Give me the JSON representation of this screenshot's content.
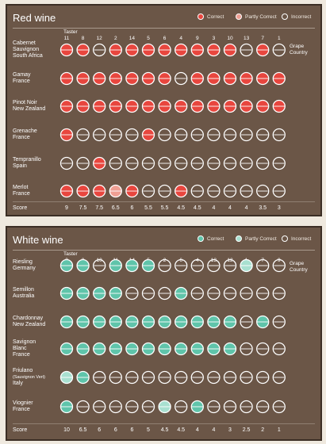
{
  "colors": {
    "red_correct": "#e8463e",
    "red_partly": "#ef9f93",
    "white_correct": "#5fc4aa",
    "white_partly": "#a8e0d0",
    "panel_bg": "#6b5647",
    "ring": "#ffffff"
  },
  "legend": {
    "correct": "Correct",
    "partly": "Partly Correct",
    "incorrect": "Incorrect"
  },
  "header": {
    "taster_label": "Taster",
    "grape_label": "Grape",
    "country_label": "Country",
    "score_label": "Score"
  },
  "chart_data": [
    {
      "type": "table",
      "title": "Red wine",
      "tasters": [
        "11",
        "8",
        "12",
        "2",
        "14",
        "5",
        "6",
        "4",
        "9",
        "3",
        "10",
        "13",
        "7",
        "1"
      ],
      "wines": [
        {
          "lines": [
            "Cabernet",
            "Sauvignon",
            "South Africa"
          ],
          "results": [
            "C",
            "C",
            "I",
            "C",
            "C",
            "C",
            "C",
            "C",
            "C",
            "C",
            "C",
            "I",
            "C",
            "I"
          ]
        },
        {
          "lines": [
            "Gamay",
            "France"
          ],
          "results": [
            "C",
            "C",
            "C",
            "C",
            "C",
            "C",
            "C",
            "I",
            "C",
            "C",
            "C",
            "C",
            "C",
            "C"
          ]
        },
        {
          "lines": [
            "Pinot Noir",
            "New Zealand"
          ],
          "results": [
            "C",
            "C",
            "C",
            "C",
            "C",
            "C",
            "C",
            "C",
            "C",
            "C",
            "C",
            "C",
            "C",
            "C"
          ]
        },
        {
          "lines": [
            "Grenache",
            "France"
          ],
          "results": [
            "C",
            "I",
            "I",
            "I",
            "I",
            "C",
            "I",
            "I",
            "I",
            "I",
            "I",
            "I",
            "I",
            "I"
          ]
        },
        {
          "lines": [
            "Tempranillo",
            "Spain"
          ],
          "results": [
            "I",
            "I",
            "C",
            "I",
            "I",
            "I",
            "I",
            "I",
            "I",
            "I",
            "I",
            "I",
            "I",
            "I"
          ]
        },
        {
          "lines": [
            "Merlot",
            "France"
          ],
          "results": [
            "C",
            "C",
            "C",
            "P",
            "C",
            "I",
            "I",
            "C",
            "I",
            "I",
            "I",
            "I",
            "I",
            "I"
          ]
        }
      ],
      "scores": [
        "9",
        "7.5",
        "7.5",
        "6.5",
        "6",
        "5.5",
        "5.5",
        "4.5",
        "4.5",
        "4",
        "4",
        "4",
        "3.5",
        "3"
      ]
    },
    {
      "type": "table",
      "title": "White wine",
      "tasters": [
        "3",
        "8",
        "10",
        "11",
        "14",
        "5",
        "2",
        "6",
        "4",
        "13",
        "12",
        "1",
        "7",
        "9"
      ],
      "wines": [
        {
          "lines": [
            "Riesling",
            "Germany"
          ],
          "results": [
            "C",
            "C",
            "I",
            "C",
            "C",
            "C",
            "I",
            "I",
            "I",
            "I",
            "I",
            "P",
            "I",
            "I"
          ]
        },
        {
          "lines": [
            "Semillon",
            "Australia"
          ],
          "results": [
            "C",
            "C",
            "C",
            "C",
            "I",
            "I",
            "I",
            "C",
            "I",
            "I",
            "I",
            "I",
            "I",
            "I"
          ]
        },
        {
          "lines": [
            "Chardonnay",
            "New Zealand"
          ],
          "results": [
            "C",
            "C",
            "C",
            "C",
            "C",
            "C",
            "C",
            "C",
            "C",
            "C",
            "C",
            "I",
            "C",
            "I"
          ]
        },
        {
          "lines": [
            "Savignon",
            "Blanc",
            "France"
          ],
          "results": [
            "C",
            "C",
            "C",
            "C",
            "C",
            "C",
            "C",
            "C",
            "C",
            "C",
            "C",
            "I",
            "I",
            "I"
          ]
        },
        {
          "lines": [
            "Friulano",
            "(Sauvignon Vert)",
            "Italy"
          ],
          "results": [
            "P",
            "C",
            "I",
            "I",
            "I",
            "I",
            "I",
            "I",
            "I",
            "I",
            "I",
            "I",
            "I",
            "I"
          ]
        },
        {
          "lines": [
            "Viognier",
            "France"
          ],
          "results": [
            "C",
            "I",
            "I",
            "I",
            "I",
            "I",
            "P",
            "I",
            "C",
            "I",
            "I",
            "I",
            "I",
            "I"
          ]
        }
      ],
      "scores": [
        "10",
        "6.5",
        "6",
        "6",
        "6",
        "5",
        "4.5",
        "4.5",
        "4",
        "4",
        "3",
        "2.5",
        "2",
        "1"
      ]
    }
  ]
}
